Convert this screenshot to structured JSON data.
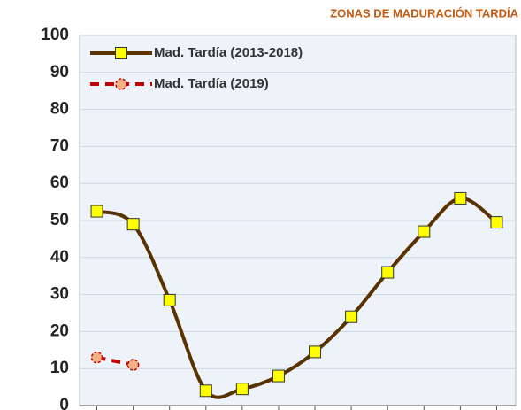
{
  "chart_data": {
    "type": "line",
    "title": "ZONAS DE MADURACIÓN TARDÍA",
    "categories": [
      null,
      null,
      null,
      null,
      null,
      null,
      null,
      null,
      null,
      null,
      null,
      null
    ],
    "series": [
      {
        "name": "Mad. Tardía (2013-2018)",
        "color": "#5a3200",
        "marker_color": "#ffff00",
        "values": [
          52.5,
          49,
          28.5,
          4,
          4.5,
          8,
          14.5,
          24,
          36,
          47,
          56,
          49.5
        ]
      },
      {
        "name": "Mad. Tardía (2019)",
        "color": "#c00000",
        "marker_color": "#f4b183",
        "values": [
          13,
          11,
          null,
          null,
          null,
          null,
          null,
          null,
          null,
          null,
          null,
          null
        ]
      }
    ],
    "ylim": [
      0,
      100
    ],
    "yticks": [
      0,
      10,
      20,
      30,
      40,
      50,
      60,
      70,
      80,
      90,
      100
    ],
    "grid": true,
    "legend": "upper left"
  }
}
